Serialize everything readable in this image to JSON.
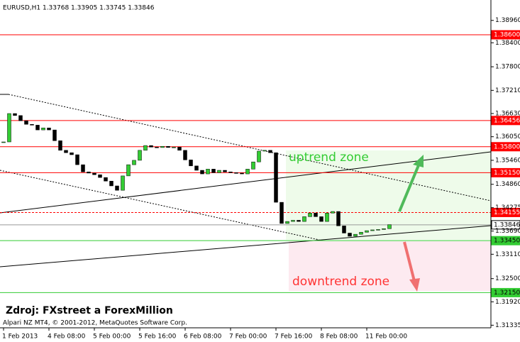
{
  "chart_data": {
    "type": "candlestick",
    "header": "EURUSD,H1  1.33768 1.33905 1.33745 1.33846",
    "source": "Zdroj: FXstreet a ForexMillion",
    "copyright": "Alpari NZ MT4, © 2001-2012, MetaQuotes Software Corp.",
    "up_zone_label": "uptrend zone",
    "down_zone_label": "downtrend zone",
    "up_color": "#33cc33",
    "down_color": "#000000",
    "ylim": [
      1.3127,
      1.3947
    ],
    "yticks": [
      {
        "value": 1.3896,
        "label": "1.38960"
      },
      {
        "value": 1.384,
        "label": "1.38400"
      },
      {
        "value": 1.378,
        "label": "1.37800"
      },
      {
        "value": 1.3721,
        "label": "1.37210"
      },
      {
        "value": 1.3663,
        "label": "1.36630"
      },
      {
        "value": 1.3605,
        "label": "1.36050"
      },
      {
        "value": 1.3546,
        "label": "1.35460"
      },
      {
        "value": 1.3486,
        "label": "1.34860"
      },
      1.34275,
      {
        "value": 1.3369,
        "label": "1.33690"
      },
      {
        "value": 1.3311,
        "label": "1.33110"
      },
      {
        "value": 1.325,
        "label": "1.32500"
      },
      {
        "value": 1.3192,
        "label": "1.31920"
      },
      1.31335
    ],
    "categories": [
      "1 Feb 2013",
      null,
      null,
      null,
      null,
      null,
      null,
      null,
      "4 Feb 08:00",
      null,
      null,
      null,
      null,
      null,
      null,
      null,
      "5 Feb 00:00",
      null,
      null,
      null,
      null,
      null,
      null,
      null,
      "5 Feb 16:00",
      null,
      null,
      null,
      null,
      null,
      null,
      null,
      "6 Feb 08:00",
      null,
      null,
      null,
      null,
      null,
      null,
      null,
      "7 Feb 00:00",
      null,
      null,
      null,
      null,
      null,
      null,
      null,
      "7 Feb 16:00",
      null,
      null,
      null,
      null,
      null,
      null,
      null,
      "8 Feb 08:00",
      null,
      null,
      null,
      null,
      null,
      null,
      null,
      "11 Feb 00:00",
      null,
      null,
      null,
      null
    ],
    "close": [
      1.3592,
      1.3663,
      1.3658,
      1.3645,
      1.3636,
      1.3634,
      1.3622,
      1.3627,
      1.3622,
      1.3595,
      1.3571,
      1.3565,
      1.356,
      1.3535,
      1.3517,
      1.3514,
      1.351,
      1.3503,
      1.3494,
      1.3482,
      1.3471,
      1.3507,
      1.3535,
      1.3546,
      1.3571,
      1.3583,
      1.3579,
      1.3578,
      1.3581,
      1.3578,
      1.3579,
      1.3571,
      1.3547,
      1.3532,
      1.3521,
      1.3512,
      1.3524,
      1.3515,
      1.3521,
      1.3517,
      1.3515,
      1.3514,
      1.3512,
      1.3524,
      1.3542,
      1.3569,
      1.3571,
      1.3565,
      1.3441,
      1.3388,
      1.3393,
      1.3396,
      1.3393,
      1.3405,
      1.3414,
      1.3405,
      1.3393,
      1.3414,
      1.3418,
      1.3382,
      1.3364,
      1.3356,
      1.3361,
      1.3366,
      1.337,
      1.3372,
      1.3373,
      1.3375,
      1.3385
    ],
    "levels": [
      {
        "value": 1.386,
        "label": "1.38600",
        "color": "#ff0000",
        "dashed": false
      },
      {
        "value": 1.36456,
        "label": "1.36456",
        "color": "#ff0000",
        "dashed": false
      },
      {
        "value": 1.358,
        "label": "1.35800",
        "color": "#ff0000",
        "dashed": false
      },
      {
        "value": 1.3515,
        "label": "1.35150",
        "color": "#ff0000",
        "dashed": false
      },
      {
        "value": 1.34155,
        "label": "1.34155",
        "color": "#ff0000",
        "dashed": true
      },
      {
        "value": 1.33846,
        "label": "1.33846",
        "color": "#999999",
        "dashed": false
      },
      {
        "value": 1.3345,
        "label": "1.33450",
        "color": "#33cc33",
        "dashed": false
      },
      {
        "value": 1.3215,
        "label": "1.32150",
        "color": "#33cc33",
        "dashed": false
      }
    ]
  }
}
